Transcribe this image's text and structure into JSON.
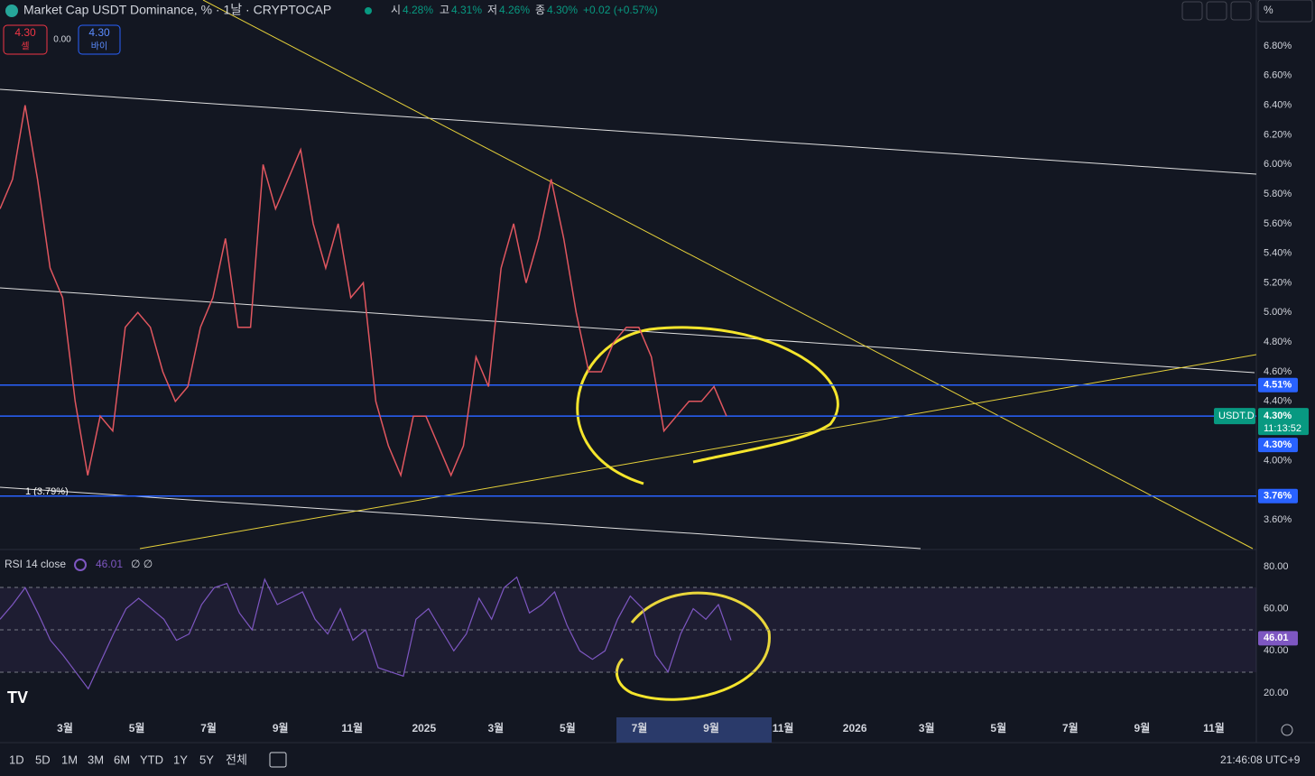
{
  "header": {
    "title": "Market Cap USDT Dominance, % · 1날 · CRYPTOCAP",
    "ohlc": [
      {
        "key": "시",
        "value": "4.28%"
      },
      {
        "key": "고",
        "value": "4.31%"
      },
      {
        "key": "저",
        "value": "4.26%"
      },
      {
        "key": "종",
        "value": "4.30%"
      }
    ],
    "change": "+0.02 (+0.57%)",
    "sell_price": "4.30",
    "sell_label": "셀",
    "spread": "0.00",
    "buy_price": "4.30",
    "buy_label": "바이",
    "scale_button": "%"
  },
  "price": {
    "ylim": [
      3.405,
      7.111
    ],
    "ticks": [
      {
        "value": 6.8,
        "label": "6.80%"
      },
      {
        "value": 6.6,
        "label": "6.60%"
      },
      {
        "value": 6.4,
        "label": "6.40%"
      },
      {
        "value": 6.2,
        "label": "6.20%"
      },
      {
        "value": 6.0,
        "label": "6.00%"
      },
      {
        "value": 5.8,
        "label": "5.80%"
      },
      {
        "value": 5.6,
        "label": "5.60%"
      },
      {
        "value": 5.4,
        "label": "5.40%"
      },
      {
        "value": 5.2,
        "label": "5.20%"
      },
      {
        "value": 5.0,
        "label": "5.00%"
      },
      {
        "value": 4.8,
        "label": "4.80%"
      },
      {
        "value": 4.6,
        "label": "4.60%"
      },
      {
        "value": 4.4,
        "label": "4.40%"
      },
      {
        "value": 4.0,
        "label": "4.00%"
      },
      {
        "value": 3.6,
        "label": "3.60%"
      }
    ],
    "closes": [
      5.7,
      5.9,
      6.4,
      5.9,
      5.3,
      5.1,
      4.4,
      3.9,
      4.3,
      4.2,
      4.9,
      5.0,
      4.9,
      4.6,
      4.4,
      4.5,
      4.9,
      5.1,
      5.5,
      4.9,
      4.9,
      6.0,
      5.7,
      5.9,
      6.1,
      5.6,
      5.3,
      5.6,
      5.1,
      5.2,
      4.4,
      4.1,
      3.9,
      4.3,
      4.3,
      4.1,
      3.9,
      4.1,
      4.7,
      4.5,
      5.3,
      5.6,
      5.2,
      5.5,
      5.9,
      5.5,
      5.0,
      4.6,
      4.6,
      4.8,
      4.9,
      4.9,
      4.7,
      4.2,
      4.3,
      4.4,
      4.4,
      4.5,
      4.3
    ],
    "levels": [
      {
        "value": 4.51,
        "label": "4.51%"
      },
      {
        "value": 4.3,
        "label": "4.30%"
      },
      {
        "value": 3.76,
        "label": "3.76%"
      }
    ],
    "symbol": "USDT.D",
    "last": "4.30%",
    "countdown": "11:13:52",
    "fib_label": "1 (3.79%)"
  },
  "rsi": {
    "title": "RSI 14 close",
    "value": "46.01",
    "extra": "∅ ∅",
    "ylim": [
      10.57,
      87.7
    ],
    "ticks": [
      {
        "value": 80,
        "label": "80.00"
      },
      {
        "value": 60,
        "label": "60.00"
      },
      {
        "value": 40,
        "label": "40.00"
      },
      {
        "value": 20,
        "label": "20.00"
      }
    ],
    "values": [
      55,
      62,
      70,
      58,
      45,
      38,
      30,
      22,
      35,
      48,
      60,
      65,
      60,
      55,
      45,
      48,
      62,
      70,
      72,
      58,
      50,
      74,
      62,
      65,
      68,
      55,
      48,
      60,
      45,
      50,
      32,
      30,
      28,
      55,
      60,
      50,
      40,
      48,
      65,
      55,
      70,
      75,
      58,
      62,
      68,
      52,
      40,
      36,
      40,
      55,
      66,
      60,
      38,
      30,
      48,
      60,
      55,
      62,
      45
    ],
    "label": "46.01"
  },
  "xaxis": {
    "labels": [
      "3월",
      "5월",
      "7월",
      "9월",
      "11월",
      "2025",
      "3월",
      "5월",
      "7월",
      "9월",
      "11월",
      "2026",
      "3월",
      "5월",
      "7월",
      "9월",
      "11월"
    ]
  },
  "footer": {
    "ranges": [
      "1D",
      "5D",
      "1M",
      "3M",
      "6M",
      "YTD",
      "1Y",
      "5Y",
      "전체"
    ],
    "clock": "21:46:08 UTC+9"
  }
}
